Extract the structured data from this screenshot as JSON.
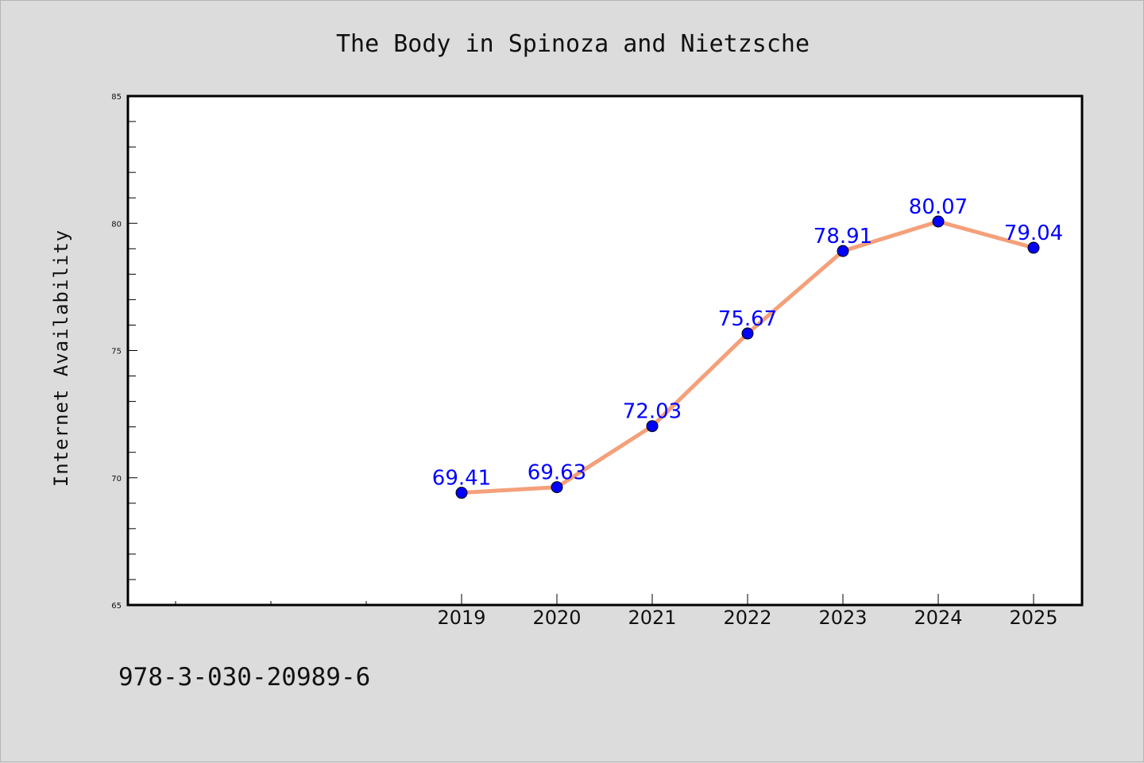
{
  "figure": {
    "background_color": "#dcdcdc",
    "plot_background_color": "#ffffff",
    "footer_text": "978-3-030-20989-6"
  },
  "chart_data": {
    "type": "line",
    "title": "The Body in Spinoza and Nietzsche",
    "xlabel": "",
    "ylabel": "Internet Availability",
    "categories": [
      "2019",
      "2020",
      "2021",
      "2022",
      "2023",
      "2024",
      "2025"
    ],
    "series": [
      {
        "values": [
          69.41,
          69.63,
          72.03,
          75.67,
          78.91,
          80.07,
          79.04
        ],
        "data_labels": [
          "69.41",
          "69.63",
          "72.03",
          "75.67",
          "78.91",
          "80.07",
          "79.04"
        ],
        "line_color": "#f4a07a",
        "marker_color": "#0000ff",
        "label_color": "#0000ff"
      }
    ],
    "ylim": [
      65,
      85
    ],
    "yticks": [
      65,
      70,
      75,
      80,
      85
    ],
    "ytick_labels": [
      "65",
      "70",
      "75",
      "80",
      "85"
    ],
    "grid": false,
    "legend": "none"
  }
}
